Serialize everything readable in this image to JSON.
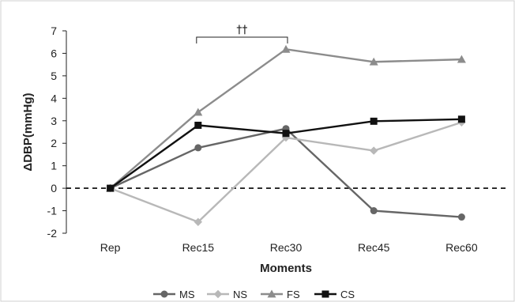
{
  "chart_data": {
    "type": "line",
    "title": "",
    "xlabel": "Moments",
    "ylabel": "ΔDBP(mmHg)",
    "categories": [
      "Rep",
      "Rec15",
      "Rec30",
      "Rec45",
      "Rec60"
    ],
    "ylim": [
      -2,
      7
    ],
    "yticks": [
      -2,
      -1,
      0,
      1,
      2,
      3,
      4,
      5,
      6,
      7
    ],
    "grid": false,
    "reference_line": {
      "y": 0,
      "style": "dashed"
    },
    "legend_position": "bottom",
    "annotation": {
      "text": "††",
      "from": "Rec15",
      "to": "Rec30"
    },
    "series": [
      {
        "name": "MS",
        "marker": "circle",
        "color": "#666666",
        "values": [
          0,
          1.8,
          2.65,
          -1.0,
          -1.28
        ]
      },
      {
        "name": "NS",
        "marker": "diamond",
        "color": "#b8b8b8",
        "values": [
          0,
          -1.5,
          2.25,
          1.67,
          2.93
        ]
      },
      {
        "name": "FS",
        "marker": "triangle",
        "color": "#8c8c8c",
        "values": [
          0,
          3.38,
          6.18,
          5.62,
          5.73
        ]
      },
      {
        "name": "CS",
        "marker": "square",
        "color": "#111111",
        "values": [
          0,
          2.8,
          2.44,
          2.98,
          3.07
        ]
      }
    ]
  }
}
